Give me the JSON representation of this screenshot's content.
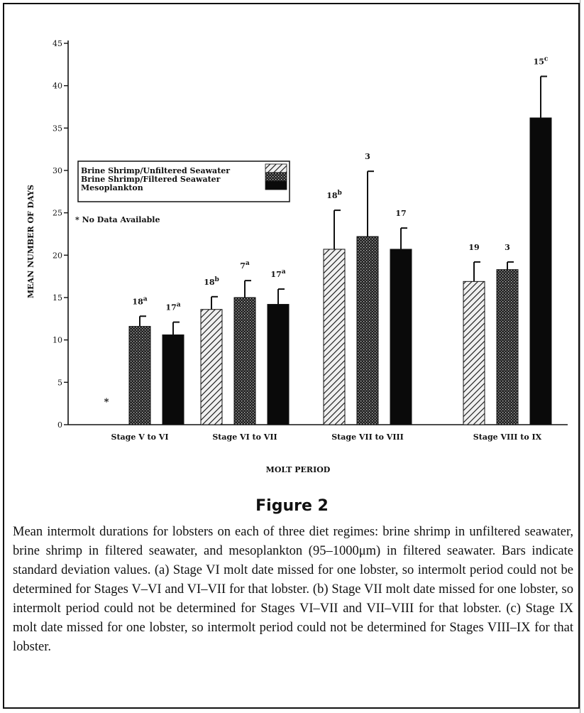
{
  "chart_data": {
    "type": "bar",
    "ylabel": "MEAN NUMBER OF DAYS",
    "xlabel": "MOLT PERIOD",
    "ylim": [
      0,
      45
    ],
    "yticks": [
      0,
      5,
      10,
      15,
      20,
      25,
      30,
      35,
      40,
      45
    ],
    "categories": [
      "Stage V to VI",
      "Stage VI to VII",
      "Stage VII to VIII",
      "Stage VIII to IX"
    ],
    "series": [
      {
        "name": "Brine Shrimp/Unfiltered Seawater",
        "pattern": "hatch",
        "values": [
          null,
          13.6,
          20.7,
          16.9
        ],
        "errors": [
          null,
          1.5,
          4.6,
          2.3
        ],
        "labels": [
          "*",
          "18b",
          "18b",
          "19"
        ]
      },
      {
        "name": "Brine Shrimp/Filtered Seawater",
        "pattern": "stipple",
        "values": [
          11.6,
          15.0,
          22.2,
          18.3
        ],
        "errors": [
          1.2,
          2.0,
          7.7,
          0.9
        ],
        "labels": [
          "18a",
          "7a",
          "3",
          "3"
        ]
      },
      {
        "name": "Mesoplankton",
        "pattern": "solid",
        "values": [
          10.6,
          14.2,
          20.7,
          36.2
        ],
        "errors": [
          1.5,
          1.8,
          2.5,
          4.9
        ],
        "labels": [
          "17a",
          "17a",
          "17",
          "15c"
        ]
      }
    ],
    "annotation": "* No Data Available",
    "legend_position": "upper-left"
  },
  "figure": {
    "title": "Figure 2",
    "caption": "Mean intermolt durations for lobsters on each of three diet regimes: brine shrimp in unfiltered seawater, brine shrimp in filtered seawater, and mesoplankton (95–1000μm) in filtered seawater. Bars indicate standard deviation values. (a) Stage VI molt date missed for one lobster, so intermolt period could not be determined for Stages V–VI and VI–VII for that lobster. (b) Stage VII molt date missed for one lobster, so intermolt period could not be determined for Stages VI–VII and VII–VIII for that lobster. (c) Stage IX molt date missed for one lobster, so intermolt period could not be determined for Stages VIII–IX for that lobster."
  }
}
